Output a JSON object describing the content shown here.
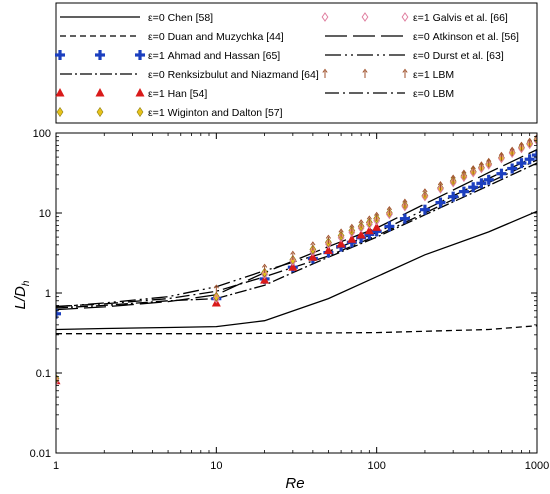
{
  "chart_data": {
    "type": "line",
    "xlabel": "Re",
    "ylabel_main": "L/D",
    "ylabel_sub": "h",
    "xscale": "log",
    "yscale": "log",
    "xlim": [
      1,
      1000
    ],
    "ylim": [
      0.01,
      100
    ],
    "grid": false,
    "legend_placement": "top",
    "xticks": [
      {
        "v": 1,
        "label": "1"
      },
      {
        "v": 10,
        "label": "10"
      },
      {
        "v": 100,
        "label": "100"
      },
      {
        "v": 1000,
        "label": "1000"
      }
    ],
    "yticks": [
      {
        "v": 0.01,
        "label": "0.01"
      },
      {
        "v": 0.1,
        "label": "0.1"
      },
      {
        "v": 1,
        "label": "1"
      },
      {
        "v": 10,
        "label": "10"
      },
      {
        "v": 100,
        "label": "100"
      }
    ],
    "series": [
      {
        "name": "ε=0 Chen [58]",
        "kind": "line",
        "dash": "",
        "color": "#000000",
        "x": [
          1,
          2,
          5,
          10,
          20,
          50,
          100,
          200,
          500,
          1000
        ],
        "y": [
          0.35,
          0.36,
          0.37,
          0.38,
          0.45,
          0.85,
          1.6,
          3.0,
          5.8,
          10.5
        ]
      },
      {
        "name": "ε=0 Duan and Muzychka [44]",
        "kind": "line",
        "dash": "6,4",
        "color": "#000000",
        "x": [
          1,
          10,
          100,
          500,
          1000
        ],
        "y": [
          0.31,
          0.31,
          0.32,
          0.35,
          0.39
        ]
      },
      {
        "name": "ε=1 Ahmad and Hassan [65]",
        "kind": "marker",
        "marker": "plus",
        "color": "#1c3fbf",
        "x": [
          1,
          10,
          20,
          30,
          40,
          50,
          60,
          70,
          80,
          90,
          100,
          120,
          150,
          200,
          250,
          300,
          350,
          400,
          450,
          500,
          600,
          700,
          800,
          900,
          1000
        ],
        "y": [
          0.55,
          0.85,
          1.5,
          2.1,
          2.7,
          3.2,
          3.8,
          4.3,
          4.9,
          5.4,
          5.9,
          6.8,
          8.5,
          11,
          13.5,
          16,
          18.5,
          21,
          23.5,
          26,
          31,
          36,
          42,
          47,
          53
        ]
      },
      {
        "name": "ε=0 Renksizbulut and Niazmand [64]",
        "kind": "line",
        "dash": "12,3,2,3",
        "color": "#000000",
        "x": [
          1,
          2,
          5,
          10,
          20,
          30,
          50,
          100,
          200,
          500,
          1000
        ],
        "y": [
          0.65,
          0.7,
          0.8,
          0.85,
          1.25,
          1.8,
          2.8,
          5.0,
          9.5,
          22,
          42
        ]
      },
      {
        "name": "ε=1 Han [54]",
        "kind": "marker",
        "marker": "triangle",
        "color": "#d91a1a",
        "x": [
          1,
          10,
          20,
          30,
          40,
          50,
          60,
          70,
          80,
          90,
          100
        ],
        "y": [
          0.08,
          0.75,
          1.45,
          2.1,
          2.8,
          3.4,
          4.1,
          4.7,
          5.3,
          6.0,
          6.6
        ]
      },
      {
        "name": "ε=1 Wiginton and Dalton [57]",
        "kind": "marker",
        "marker": "diamond",
        "color": "#e6c21a",
        "x": [
          1,
          10,
          20,
          30,
          40,
          50,
          60,
          70,
          80,
          90,
          100,
          120,
          150,
          200,
          250,
          300,
          350,
          400,
          450,
          500,
          600,
          700,
          800,
          900,
          1000
        ],
        "y": [
          0.085,
          0.9,
          1.8,
          2.6,
          3.5,
          4.3,
          5.2,
          6.0,
          6.8,
          7.6,
          8.5,
          10,
          12.5,
          16.5,
          20.5,
          25,
          29,
          33,
          37,
          41,
          49,
          57,
          66,
          74,
          83
        ]
      },
      {
        "name": "ε=1 Galvis et al. [66]",
        "kind": "marker",
        "marker": "diamond-open",
        "color": "#e07fa0",
        "x": [
          1,
          10,
          20,
          30,
          40,
          50,
          60,
          70,
          80,
          90,
          100,
          120,
          150,
          200,
          250,
          300,
          350,
          400,
          450,
          500,
          600,
          700,
          800,
          900,
          1000
        ],
        "y": [
          0.08,
          0.85,
          1.7,
          2.5,
          3.3,
          4.1,
          4.9,
          5.7,
          6.5,
          7.2,
          8.0,
          9.6,
          12,
          16,
          20,
          24,
          28,
          32,
          36,
          40,
          48,
          56,
          64,
          72,
          80
        ]
      },
      {
        "name": "ε=0 Atkinson et al. [56]",
        "kind": "line",
        "dash": "22,6",
        "color": "#000000",
        "x": [
          1,
          2,
          5,
          10,
          20,
          50,
          100,
          200,
          500,
          1000
        ],
        "y": [
          0.62,
          0.67,
          0.78,
          0.95,
          1.8,
          3.8,
          6.5,
          13,
          32,
          62
        ]
      },
      {
        "name": "ε=0 Durst et al. [63]",
        "kind": "line",
        "dash": "16,4,2,4,2,4",
        "color": "#000000",
        "x": [
          1,
          2,
          5,
          10,
          20,
          50,
          100,
          200,
          500,
          1000
        ],
        "y": [
          0.67,
          0.75,
          0.9,
          1.2,
          1.9,
          3.3,
          5.7,
          11,
          27,
          52
        ]
      },
      {
        "name": "ε=1 LBM",
        "kind": "marker",
        "marker": "arrow",
        "color": "#a0522d",
        "x": [
          10,
          20,
          30,
          40,
          50,
          60,
          70,
          80,
          90,
          100,
          120,
          150,
          200,
          250,
          300,
          350,
          400,
          450,
          500,
          600,
          700,
          800,
          900,
          1000
        ],
        "y": [
          1.1,
          2.0,
          2.9,
          3.8,
          4.6,
          5.5,
          6.3,
          7.2,
          8.0,
          8.9,
          10.5,
          13,
          17.5,
          21.5,
          26,
          30,
          34,
          38,
          42,
          50,
          58,
          67,
          75,
          84
        ]
      },
      {
        "name": "ε=0 LBM",
        "kind": "line",
        "dash": "14,4,2,4",
        "color": "#000000",
        "x": [
          1,
          2,
          5,
          10,
          20,
          50,
          100,
          200,
          500,
          1000
        ],
        "y": [
          0.68,
          0.73,
          0.85,
          1.05,
          1.6,
          2.9,
          5.2,
          10,
          24,
          46
        ]
      }
    ]
  }
}
